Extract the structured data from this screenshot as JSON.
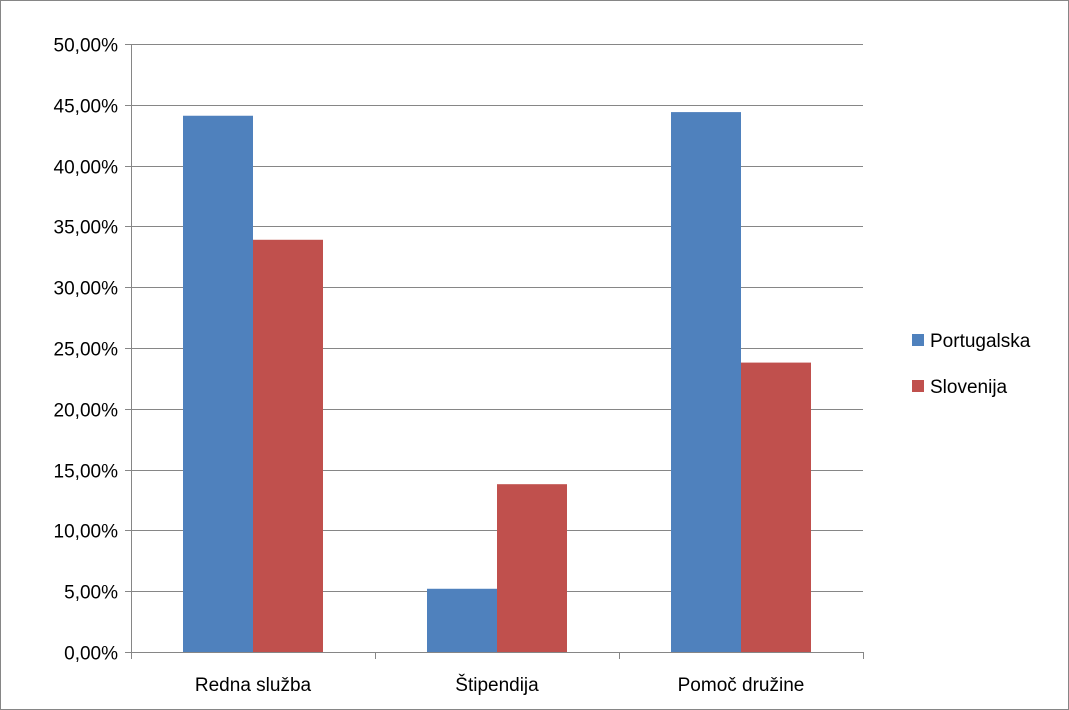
{
  "chart_data": {
    "type": "bar",
    "categories": [
      "Redna služba",
      "Štipendija",
      "Pomoč družine"
    ],
    "series": [
      {
        "name": "Portugalska",
        "values": [
          44.1,
          5.2,
          44.4
        ],
        "color": "#4f81bd"
      },
      {
        "name": "Slovenija",
        "values": [
          33.9,
          13.8,
          23.8
        ],
        "color": "#c0504d"
      }
    ],
    "y_ticks": [
      "0,00%",
      "5,00%",
      "10,00%",
      "15,00%",
      "20,00%",
      "25,00%",
      "30,00%",
      "35,00%",
      "40,00%",
      "45,00%",
      "50,00%"
    ],
    "ylim": [
      0,
      50
    ],
    "y_step": 5,
    "grid": true,
    "legend_position": "right",
    "colors": {
      "grid": "#868686",
      "axis": "#868686"
    }
  }
}
